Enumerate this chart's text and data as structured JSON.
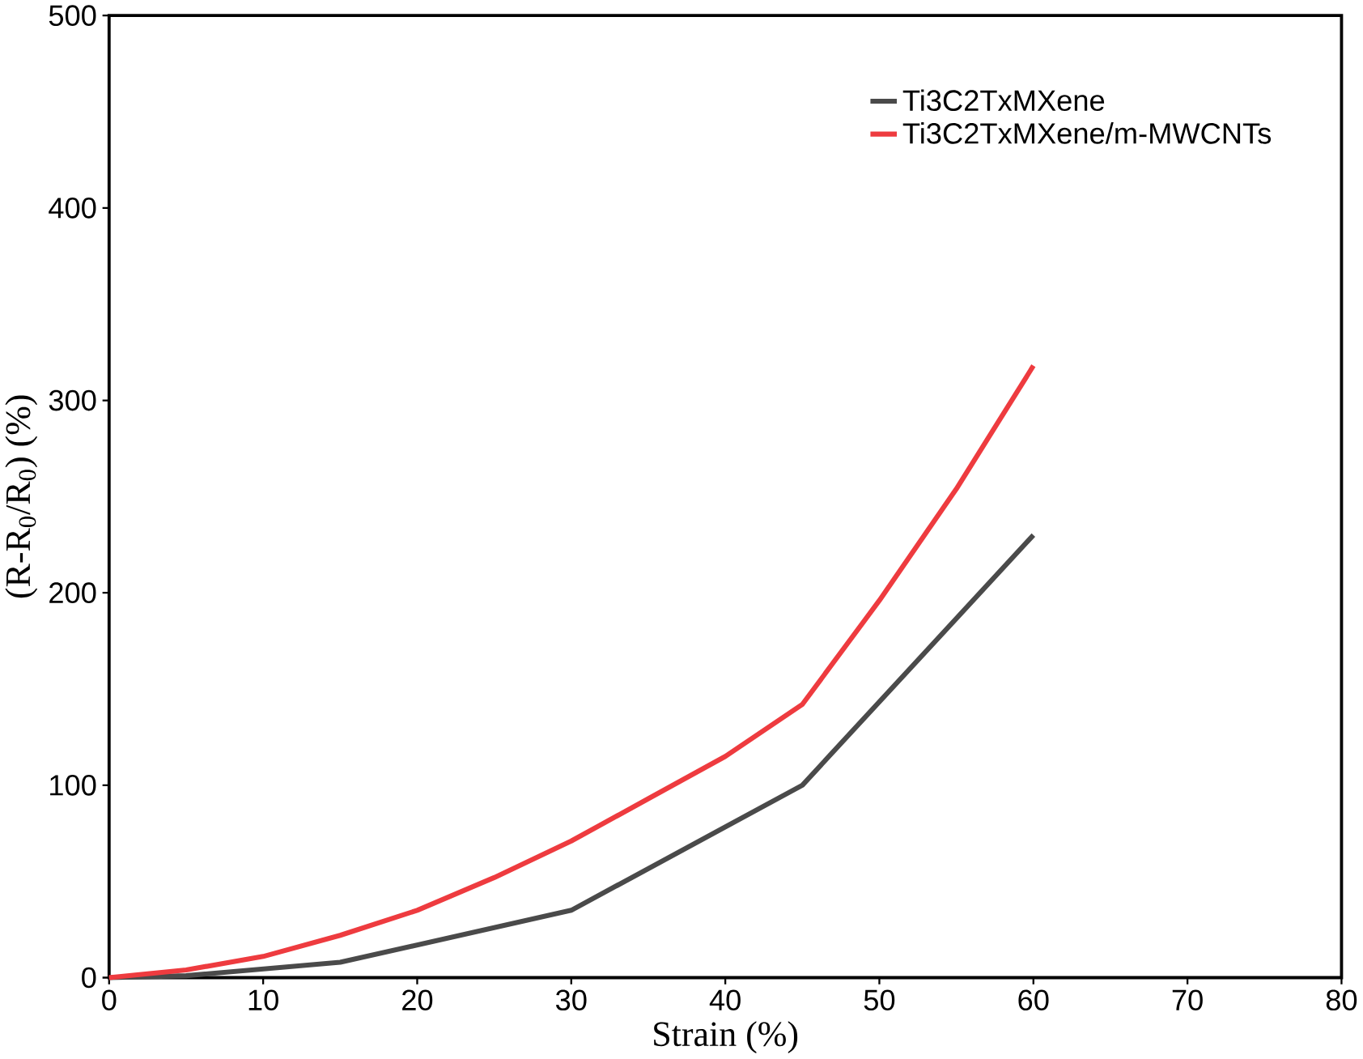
{
  "chart_data": {
    "type": "line",
    "xlabel": "Strain (%)",
    "ylabel": "(R-R$_{0}$/R$_{0}$) (%)",
    "xlim": [
      0,
      80
    ],
    "ylim": [
      0,
      500
    ],
    "xticks": [
      0,
      10,
      20,
      30,
      40,
      50,
      60,
      70,
      80
    ],
    "yticks": [
      0,
      100,
      200,
      300,
      400,
      500
    ],
    "legend": "top right",
    "grid": false,
    "marker": "none",
    "line_style": "solid",
    "series": [
      {
        "name": "Ti3C2TxMXene",
        "color": "#4a4a4a",
        "x": [
          0,
          5,
          15,
          30,
          45,
          60
        ],
        "values": [
          0,
          1,
          8,
          35,
          100,
          230
        ]
      },
      {
        "name": "Ti3C2TxMXene/m-MWCNTs",
        "color": "#ee3b3f",
        "x": [
          0,
          5,
          10,
          15,
          20,
          25,
          30,
          35,
          40,
          45,
          50,
          55,
          60
        ],
        "values": [
          0,
          4,
          11,
          22,
          35,
          52,
          71,
          93,
          115,
          142,
          196,
          254,
          318
        ]
      }
    ]
  }
}
